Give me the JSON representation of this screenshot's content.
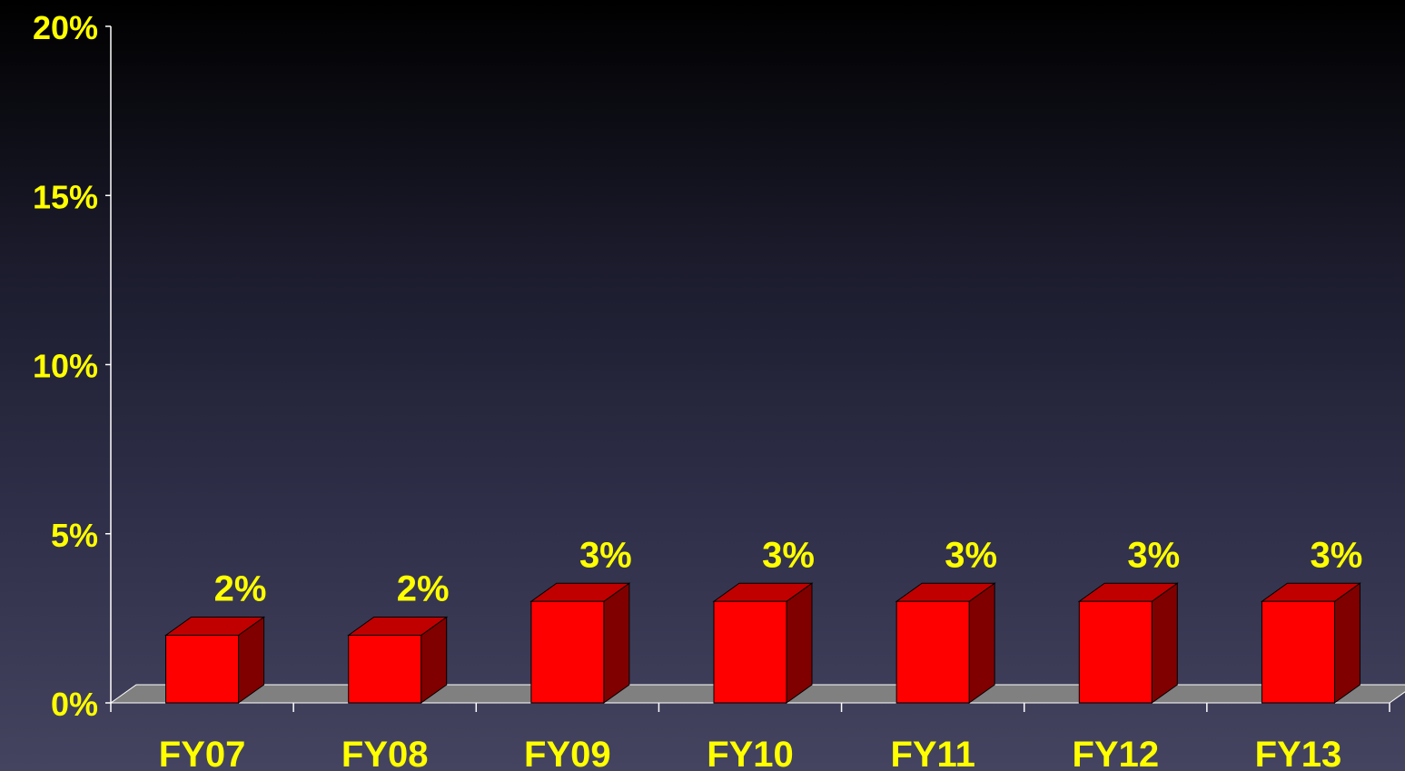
{
  "chart_data": {
    "type": "bar",
    "title": "",
    "xlabel": "",
    "ylabel": "",
    "categories": [
      "FY07",
      "FY08",
      "FY09",
      "FY10",
      "FY11",
      "FY12",
      "FY13"
    ],
    "values": [
      2,
      2,
      3,
      3,
      3,
      3,
      3
    ],
    "value_labels": [
      "2%",
      "2%",
      "3%",
      "3%",
      "3%",
      "3%",
      "3%"
    ],
    "ylim": [
      0,
      20
    ],
    "yticks": [
      0,
      5,
      10,
      15,
      20
    ],
    "ytick_labels": [
      "0%",
      "5%",
      "10%",
      "15%",
      "20%"
    ],
    "grid": false,
    "style": "3d-bar",
    "colors": {
      "bar_front": "#ff0000",
      "bar_top": "#c00000",
      "bar_side": "#800000",
      "floor": "#808080",
      "axis": "#ffffff",
      "text": "#ffff00"
    }
  }
}
